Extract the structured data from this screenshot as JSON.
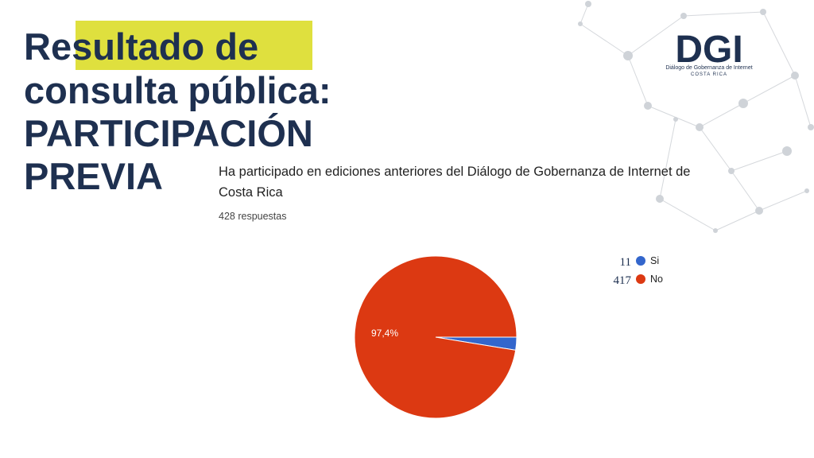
{
  "slide": {
    "title_lines": [
      "Resultado de",
      "consulta pública:",
      "PARTICIPACIÓN",
      "PREVIA"
    ],
    "logo": {
      "name": "DGI",
      "tagline": "Diálogo de Gobernanza de Internet",
      "country": "COSTA RICA"
    }
  },
  "chart_data": {
    "type": "pie",
    "title_lines": [
      "Ha participado en ediciones anteriores del Diálogo de Gobernanza de Internet de",
      "Costa Rica"
    ],
    "subtitle": "428 respuestas",
    "categories": [
      "Si",
      "No"
    ],
    "values": [
      11,
      417
    ],
    "colors": [
      "#3366cc",
      "#dc3912"
    ],
    "annotations": [
      {
        "value": 97.4,
        "label": "97,4%"
      }
    ]
  }
}
